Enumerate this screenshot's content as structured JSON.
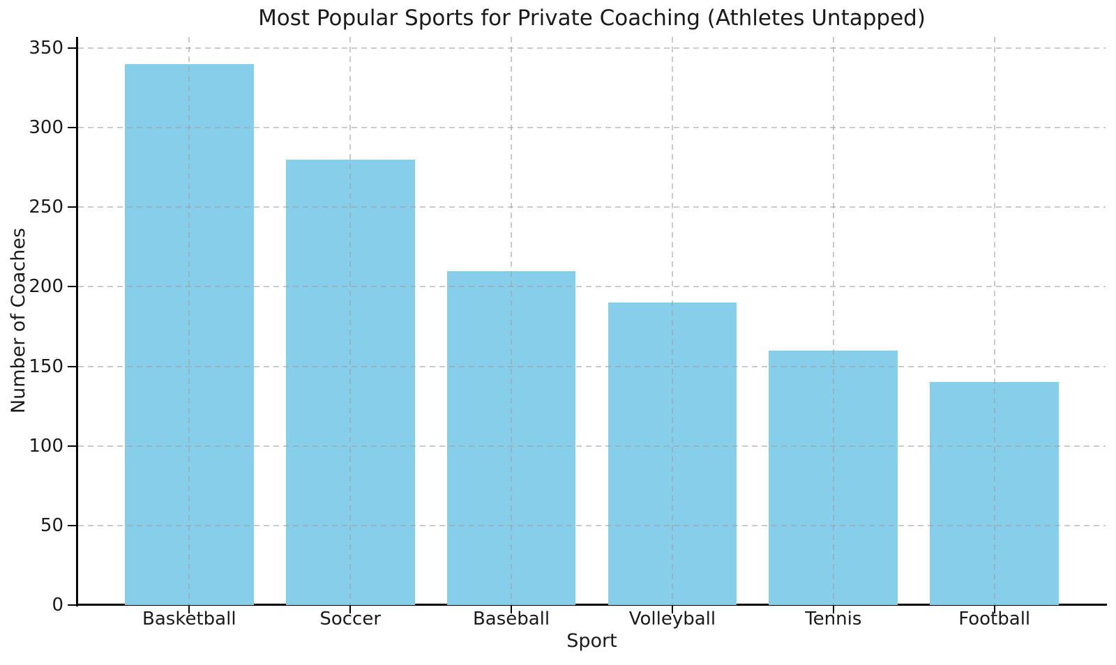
{
  "chart_data": {
    "type": "bar",
    "title": "Most Popular Sports for Private Coaching (Athletes Untapped)",
    "xlabel": "Sport",
    "ylabel": "Number of Coaches",
    "categories": [
      "Basketball",
      "Soccer",
      "Baseball",
      "Volleyball",
      "Tennis",
      "Football"
    ],
    "values": [
      340,
      280,
      210,
      190,
      160,
      140
    ],
    "yticks": [
      0,
      50,
      100,
      150,
      200,
      250,
      300,
      350
    ],
    "ylim": [
      0,
      357
    ],
    "xlim": [
      -0.69,
      5.69
    ],
    "bar_width": 0.8,
    "bar_color": "#87CEEB",
    "grid": true,
    "grid_style": "dashed",
    "grid_color": "#c9c9c9",
    "spine_color": "#000000",
    "text_color": "#1a1a1a",
    "background": "#ffffff",
    "legend": null
  }
}
